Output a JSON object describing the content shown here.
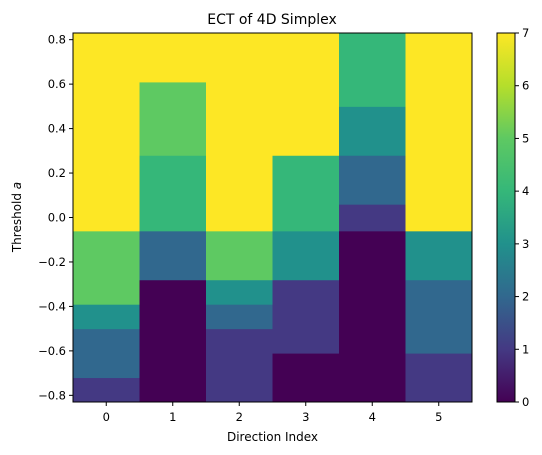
{
  "chart_data": {
    "type": "heatmap",
    "title": "ECT of 4D Simplex",
    "xlabel": "Direction Index",
    "ylabel_text": "Threshold ",
    "ylabel_var": "a",
    "x_categories": [
      "0",
      "1",
      "2",
      "3",
      "4",
      "5"
    ],
    "y_range": [
      -0.83,
      0.83
    ],
    "y_ticks": [
      -0.8,
      -0.6,
      -0.4,
      -0.2,
      0.0,
      0.2,
      0.4,
      0.6,
      0.8
    ],
    "y_tick_labels": [
      "−0.8",
      "−0.6",
      "−0.4",
      "−0.2",
      "0.0",
      "0.2",
      "0.4",
      "0.6",
      "0.8"
    ],
    "colorbar": {
      "range": [
        0,
        7
      ],
      "ticks": [
        0,
        1,
        2,
        3,
        4,
        5,
        6,
        7
      ],
      "tick_labels": [
        "0",
        "1",
        "2",
        "3",
        "4",
        "5",
        "6",
        "7"
      ],
      "colormap": "viridis"
    },
    "columns": [
      {
        "x": "0",
        "segments": [
          {
            "y0": -0.83,
            "y1": -0.72,
            "value": 1
          },
          {
            "y0": -0.72,
            "y1": -0.5,
            "value": 2
          },
          {
            "y0": -0.5,
            "y1": -0.39,
            "value": 3
          },
          {
            "y0": -0.39,
            "y1": -0.06,
            "value": 5
          },
          {
            "y0": -0.06,
            "y1": 0.83,
            "value": 7
          }
        ]
      },
      {
        "x": "1",
        "segments": [
          {
            "y0": -0.83,
            "y1": -0.28,
            "value": 0
          },
          {
            "y0": -0.28,
            "y1": -0.06,
            "value": 2
          },
          {
            "y0": -0.06,
            "y1": 0.28,
            "value": 4
          },
          {
            "y0": 0.28,
            "y1": 0.61,
            "value": 5
          },
          {
            "y0": 0.61,
            "y1": 0.83,
            "value": 7
          }
        ]
      },
      {
        "x": "2",
        "segments": [
          {
            "y0": -0.83,
            "y1": -0.5,
            "value": 1
          },
          {
            "y0": -0.5,
            "y1": -0.39,
            "value": 2
          },
          {
            "y0": -0.39,
            "y1": -0.28,
            "value": 3
          },
          {
            "y0": -0.28,
            "y1": -0.06,
            "value": 5
          },
          {
            "y0": -0.06,
            "y1": 0.83,
            "value": 7
          }
        ]
      },
      {
        "x": "3",
        "segments": [
          {
            "y0": -0.83,
            "y1": -0.61,
            "value": 0
          },
          {
            "y0": -0.61,
            "y1": -0.28,
            "value": 1
          },
          {
            "y0": -0.28,
            "y1": -0.06,
            "value": 3
          },
          {
            "y0": -0.06,
            "y1": 0.28,
            "value": 4
          },
          {
            "y0": 0.28,
            "y1": 0.83,
            "value": 7
          }
        ]
      },
      {
        "x": "4",
        "segments": [
          {
            "y0": -0.83,
            "y1": -0.06,
            "value": 0
          },
          {
            "y0": -0.06,
            "y1": 0.06,
            "value": 1
          },
          {
            "y0": 0.06,
            "y1": 0.28,
            "value": 2
          },
          {
            "y0": 0.28,
            "y1": 0.5,
            "value": 3
          },
          {
            "y0": 0.5,
            "y1": 0.83,
            "value": 4
          }
        ]
      },
      {
        "x": "5",
        "segments": [
          {
            "y0": -0.83,
            "y1": -0.61,
            "value": 1
          },
          {
            "y0": -0.61,
            "y1": -0.28,
            "value": 2
          },
          {
            "y0": -0.28,
            "y1": -0.06,
            "value": 3
          },
          {
            "y0": -0.06,
            "y1": 0.83,
            "value": 7
          }
        ]
      }
    ],
    "color_scale": {
      "0": "#440154",
      "1": "#443983",
      "2": "#31688e",
      "3": "#21918c",
      "4": "#35b779",
      "5": "#5ec962",
      "6": "#b5de2b",
      "7": "#fde725"
    }
  }
}
